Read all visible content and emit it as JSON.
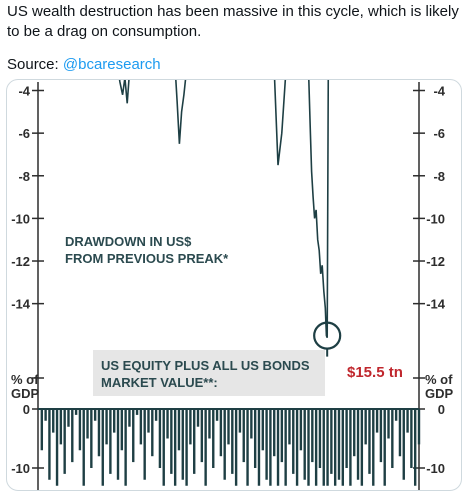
{
  "post": {
    "text": "US wealth destruction has been massive in this cycle, which is likely to be a drag on consumption.",
    "source_label": "Source:",
    "source_handle": "@bcaresearch"
  },
  "chart_data": [
    {
      "type": "line",
      "title": "",
      "annotation": "DRAWDOWN IN US$ FROM PREVIOUS PREAK*",
      "annotation_lines": [
        "DRAWDOWN IN US$",
        "FROM PREVIOUS PREAK*"
      ],
      "value_label": "$15.5 tn",
      "marked_value": -15.5,
      "ylabel": "",
      "yticks": [
        -4,
        -6,
        -8,
        -10,
        -12,
        -14
      ],
      "ytick_labels": [
        "-4",
        "-6",
        "-8",
        "-10",
        "-12",
        "-14"
      ],
      "ylim": [
        -15.8,
        -3.6
      ],
      "grid": false,
      "color": "#1e3f44",
      "series": [
        {
          "points": [
            [
              0.0,
              -3.0
            ],
            [
              0.04,
              -3.0
            ],
            [
              0.12,
              -3.0
            ],
            [
              0.21,
              -3.0
            ],
            [
              0.215,
              -3.6
            ],
            [
              0.222,
              -4.2
            ],
            [
              0.228,
              -3.4
            ],
            [
              0.234,
              -4.6
            ],
            [
              0.24,
              -3.2
            ],
            [
              0.246,
              -3.0
            ],
            [
              0.36,
              -3.0
            ],
            [
              0.365,
              -4.5
            ],
            [
              0.371,
              -6.5
            ],
            [
              0.377,
              -5.0
            ],
            [
              0.383,
              -4.2
            ],
            [
              0.39,
              -3.0
            ],
            [
              0.44,
              -3.0
            ],
            [
              0.62,
              -3.0
            ],
            [
              0.63,
              -7.5
            ],
            [
              0.64,
              -6.0
            ],
            [
              0.65,
              -3.3
            ],
            [
              0.66,
              -3.0
            ],
            [
              0.71,
              -3.0
            ],
            [
              0.715,
              -6.0
            ],
            [
              0.718,
              -7.8
            ],
            [
              0.722,
              -9.0
            ],
            [
              0.726,
              -10.0
            ],
            [
              0.73,
              -9.6
            ],
            [
              0.734,
              -11.0
            ],
            [
              0.738,
              -11.5
            ],
            [
              0.742,
              -12.6
            ],
            [
              0.746,
              -12.2
            ],
            [
              0.75,
              -13.4
            ],
            [
              0.754,
              -14.2
            ],
            [
              0.757,
              -15.5
            ],
            [
              0.759,
              -15.6
            ],
            [
              0.762,
              -3.0
            ],
            [
              0.8,
              -3.0
            ],
            [
              0.9,
              -3.0
            ]
          ]
        }
      ]
    },
    {
      "type": "line",
      "title": "",
      "annotation": "US EQUITY PLUS ALL US BONDS MARKET VALUE**:",
      "annotation_lines": [
        "US EQUITY PLUS ALL US BONDS",
        "MARKET VALUE**:"
      ],
      "ylabel": "% of GDP",
      "ylabel_lines": [
        "% of",
        "GDP"
      ],
      "yticks": [
        0,
        -10
      ],
      "ytick_labels": [
        "0",
        "-10"
      ],
      "ylim": [
        -13,
        0
      ],
      "grid": false,
      "color": "#1e3f44",
      "series": [
        {
          "points": [
            [
              0.0,
              0
            ],
            [
              0.01,
              -7
            ],
            [
              0.02,
              -2
            ],
            [
              0.03,
              -12
            ],
            [
              0.04,
              -4
            ],
            [
              0.05,
              -13
            ],
            [
              0.06,
              -6
            ],
            [
              0.07,
              -11
            ],
            [
              0.08,
              -3
            ],
            [
              0.09,
              -9
            ],
            [
              0.1,
              -1
            ],
            [
              0.11,
              -7
            ],
            [
              0.12,
              -13
            ],
            [
              0.13,
              -5
            ],
            [
              0.14,
              -10
            ],
            [
              0.15,
              -2
            ],
            [
              0.16,
              -8
            ],
            [
              0.17,
              -13
            ],
            [
              0.18,
              -6
            ],
            [
              0.19,
              -11
            ],
            [
              0.2,
              -4
            ],
            [
              0.21,
              -12
            ],
            [
              0.22,
              -7
            ],
            [
              0.23,
              -13
            ],
            [
              0.24,
              -3
            ],
            [
              0.25,
              -9
            ],
            [
              0.26,
              -1
            ],
            [
              0.27,
              -6
            ],
            [
              0.28,
              -12
            ],
            [
              0.29,
              -4
            ],
            [
              0.3,
              -8
            ],
            [
              0.31,
              -2
            ],
            [
              0.32,
              -10
            ],
            [
              0.33,
              -13
            ],
            [
              0.34,
              -5
            ],
            [
              0.35,
              -11
            ],
            [
              0.36,
              -13
            ],
            [
              0.37,
              -7
            ],
            [
              0.38,
              -12
            ],
            [
              0.39,
              -13
            ],
            [
              0.4,
              -6
            ],
            [
              0.41,
              -11
            ],
            [
              0.42,
              -3
            ],
            [
              0.43,
              -9
            ],
            [
              0.44,
              -13
            ],
            [
              0.45,
              -5
            ],
            [
              0.46,
              -10
            ],
            [
              0.47,
              -2
            ],
            [
              0.48,
              -8
            ],
            [
              0.49,
              -12
            ],
            [
              0.5,
              -6
            ],
            [
              0.51,
              -11
            ],
            [
              0.52,
              -13
            ],
            [
              0.53,
              -4
            ],
            [
              0.54,
              -9
            ],
            [
              0.55,
              -13
            ],
            [
              0.56,
              -5
            ],
            [
              0.57,
              -10
            ],
            [
              0.58,
              -13
            ],
            [
              0.59,
              -7
            ],
            [
              0.6,
              -12
            ],
            [
              0.61,
              -13
            ],
            [
              0.62,
              -8
            ],
            [
              0.63,
              -13
            ],
            [
              0.64,
              -9
            ],
            [
              0.65,
              -13
            ],
            [
              0.66,
              -6
            ],
            [
              0.67,
              -11
            ],
            [
              0.68,
              -13
            ],
            [
              0.69,
              -7
            ],
            [
              0.7,
              -12
            ],
            [
              0.71,
              -13
            ],
            [
              0.72,
              -9
            ],
            [
              0.73,
              -13
            ],
            [
              0.74,
              -10
            ],
            [
              0.75,
              -13
            ],
            [
              0.76,
              -13
            ],
            [
              0.77,
              -11
            ],
            [
              0.78,
              -13
            ],
            [
              0.79,
              -12
            ],
            [
              0.8,
              -13
            ],
            [
              0.81,
              -10
            ],
            [
              0.82,
              -13
            ],
            [
              0.83,
              -8
            ],
            [
              0.84,
              -12
            ],
            [
              0.85,
              -13
            ],
            [
              0.86,
              -6
            ],
            [
              0.87,
              -11
            ],
            [
              0.88,
              -13
            ],
            [
              0.89,
              -4
            ],
            [
              0.9,
              -9
            ],
            [
              0.91,
              -13
            ],
            [
              0.92,
              -5
            ],
            [
              0.93,
              -10
            ],
            [
              0.94,
              -2
            ],
            [
              0.95,
              -8
            ],
            [
              0.96,
              -12
            ],
            [
              0.97,
              -4
            ],
            [
              0.98,
              -10
            ],
            [
              0.99,
              -13
            ],
            [
              1.0,
              -6
            ]
          ]
        }
      ]
    }
  ]
}
